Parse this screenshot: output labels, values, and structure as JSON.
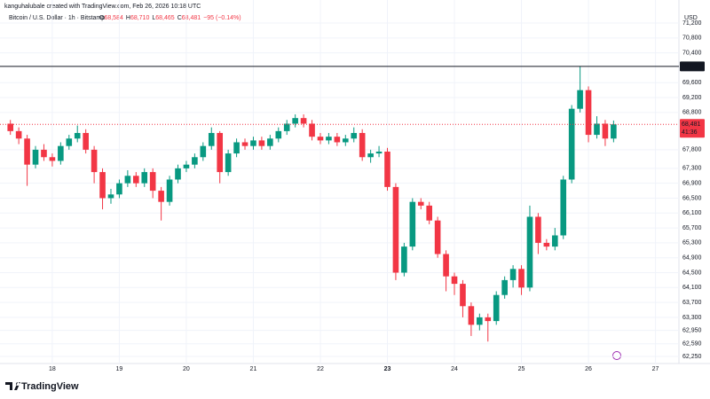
{
  "credit": "kanguhalubale created with TradingView.com, Feb 26, 2026 10:18 UTC",
  "logo": "TradingView",
  "chart_data": {
    "type": "candlestick",
    "symbol": "Bitcoin / U.S. Dollar · 1h · Bitstamp",
    "ohlc_legend": [
      {
        "label": "O",
        "value": "68,584"
      },
      {
        "label": "H",
        "value": "68,710"
      },
      {
        "label": "L",
        "value": "68,465"
      },
      {
        "label": "C",
        "value": "68,481"
      }
    ],
    "change": "−95 (−0.14%)",
    "currency": "USD",
    "up_color": "#089981",
    "down_color": "#f23645",
    "x": [
      17.375,
      17.5,
      17.625,
      17.75,
      17.875,
      18,
      18.125,
      18.25,
      18.375,
      18.5,
      18.625,
      18.75,
      18.875,
      19,
      19.125,
      19.25,
      19.375,
      19.5,
      19.625,
      19.75,
      19.875,
      20,
      20.125,
      20.25,
      20.375,
      20.5,
      20.625,
      20.75,
      20.875,
      21,
      21.125,
      21.25,
      21.375,
      21.5,
      21.625,
      21.75,
      21.875,
      22,
      22.125,
      22.25,
      22.375,
      22.5,
      22.625,
      22.75,
      22.875,
      23,
      23.125,
      23.25,
      23.375,
      23.5,
      23.625,
      23.75,
      23.875,
      24,
      24.125,
      24.25,
      24.375,
      24.5,
      24.625,
      24.75,
      24.875,
      25,
      25.125,
      25.25,
      25.375,
      25.5,
      25.625,
      25.75,
      25.875,
      26,
      26.125,
      26.25,
      26.375
    ],
    "open": [
      68500,
      68300,
      68100,
      67400,
      67800,
      67600,
      67500,
      67900,
      68100,
      68250,
      67800,
      67200,
      66500,
      66600,
      66900,
      67100,
      66900,
      67200,
      66700,
      66400,
      67000,
      67300,
      67400,
      67600,
      67900,
      68250,
      67200,
      67700,
      68000,
      67900,
      68050,
      67900,
      68100,
      68300,
      68500,
      68650,
      68500,
      68150,
      68050,
      68150,
      68000,
      68100,
      68250,
      67600,
      67700,
      67750,
      66800,
      64500,
      65200,
      66400,
      66300,
      65900,
      65000,
      64400,
      64200,
      63600,
      63100,
      63300,
      63200,
      63900,
      64300,
      64600,
      64100,
      66000,
      65300,
      65200,
      65500,
      67000,
      68900,
      69400,
      68200,
      68500,
      68100
    ],
    "high": [
      68600,
      68400,
      68200,
      67900,
      67950,
      67700,
      68000,
      68200,
      68450,
      68350,
      67900,
      67300,
      66750,
      67000,
      67250,
      67200,
      67300,
      67300,
      66800,
      67100,
      67400,
      67500,
      67700,
      68000,
      68400,
      68300,
      67800,
      68100,
      68100,
      68150,
      68150,
      68200,
      68400,
      68600,
      68750,
      68750,
      68600,
      68250,
      68250,
      68250,
      68200,
      68400,
      68350,
      67800,
      67900,
      67850,
      66900,
      65300,
      66500,
      66500,
      66400,
      66000,
      65100,
      64500,
      64300,
      63700,
      63400,
      63400,
      64000,
      64400,
      64700,
      64700,
      66300,
      66100,
      65400,
      65700,
      67100,
      69000,
      70040,
      69500,
      68700,
      68600,
      68584
    ],
    "low": [
      68200,
      67950,
      66830,
      67300,
      67500,
      67350,
      67400,
      67800,
      68000,
      67700,
      66900,
      66200,
      66350,
      66500,
      66800,
      66800,
      66800,
      66500,
      65900,
      66300,
      66900,
      67200,
      67300,
      67500,
      67800,
      66900,
      67100,
      67600,
      67800,
      67800,
      67800,
      67800,
      68000,
      68200,
      68400,
      68400,
      68050,
      67950,
      67950,
      67900,
      67900,
      68000,
      67500,
      67450,
      67600,
      66700,
      64300,
      64400,
      65100,
      66200,
      65800,
      64900,
      64000,
      63900,
      63300,
      62800,
      62950,
      62650,
      63100,
      63800,
      64100,
      63900,
      64000,
      65000,
      65100,
      65100,
      65400,
      66900,
      68800,
      68000,
      68100,
      67900,
      68000
    ],
    "close": [
      68300,
      68100,
      67400,
      67800,
      67600,
      67500,
      67900,
      68100,
      68250,
      67800,
      67200,
      66500,
      66600,
      66900,
      67100,
      66900,
      67200,
      66700,
      66400,
      67000,
      67300,
      67400,
      67600,
      67900,
      68250,
      67200,
      67700,
      68000,
      67900,
      68050,
      67900,
      68100,
      68300,
      68500,
      68650,
      68500,
      68150,
      68050,
      68150,
      68000,
      68100,
      68250,
      67600,
      67700,
      67750,
      66800,
      64500,
      65200,
      66400,
      66300,
      65900,
      65000,
      64400,
      64200,
      63600,
      63100,
      63300,
      63200,
      63900,
      64300,
      64600,
      64100,
      66000,
      65300,
      65200,
      65500,
      67000,
      68900,
      69400,
      68200,
      68500,
      68100,
      68481
    ],
    "xlim": [
      17.22,
      27.35
    ],
    "xticks": [
      18,
      19,
      20,
      21,
      22,
      23,
      24,
      25,
      26,
      27
    ],
    "bold_xticks": [
      23
    ],
    "ylim": [
      62060,
      71820
    ],
    "yticks": [
      {
        "value": 71200,
        "label": "71,200"
      },
      {
        "value": 70800,
        "label": "70,800"
      },
      {
        "value": 70400,
        "label": "70,400"
      },
      {
        "value": 69600,
        "label": "69,600"
      },
      {
        "value": 69200,
        "label": "69,200"
      },
      {
        "value": 68800,
        "label": "68,800"
      },
      {
        "value": 67800,
        "label": "67,800"
      },
      {
        "value": 67300,
        "label": "67,300"
      },
      {
        "value": 66900,
        "label": "66,900"
      },
      {
        "value": 66500,
        "label": "66,500"
      },
      {
        "value": 66100,
        "label": "66,100"
      },
      {
        "value": 65700,
        "label": "65,700"
      },
      {
        "value": 65300,
        "label": "65,300"
      },
      {
        "value": 64900,
        "label": "64,900"
      },
      {
        "value": 64500,
        "label": "64,500"
      },
      {
        "value": 64100,
        "label": "64,100"
      },
      {
        "value": 63700,
        "label": "63,700"
      },
      {
        "value": 63300,
        "label": "63,300"
      },
      {
        "value": 62950,
        "label": "62,950"
      },
      {
        "value": 62590,
        "label": "62,590"
      },
      {
        "value": 62250,
        "label": "62,250"
      }
    ],
    "horizontal_line": {
      "value": 70038,
      "label": "70,038",
      "color": "#131722"
    },
    "last_price": {
      "value": 68481,
      "label": "68,481",
      "countdown": "41:36"
    }
  }
}
